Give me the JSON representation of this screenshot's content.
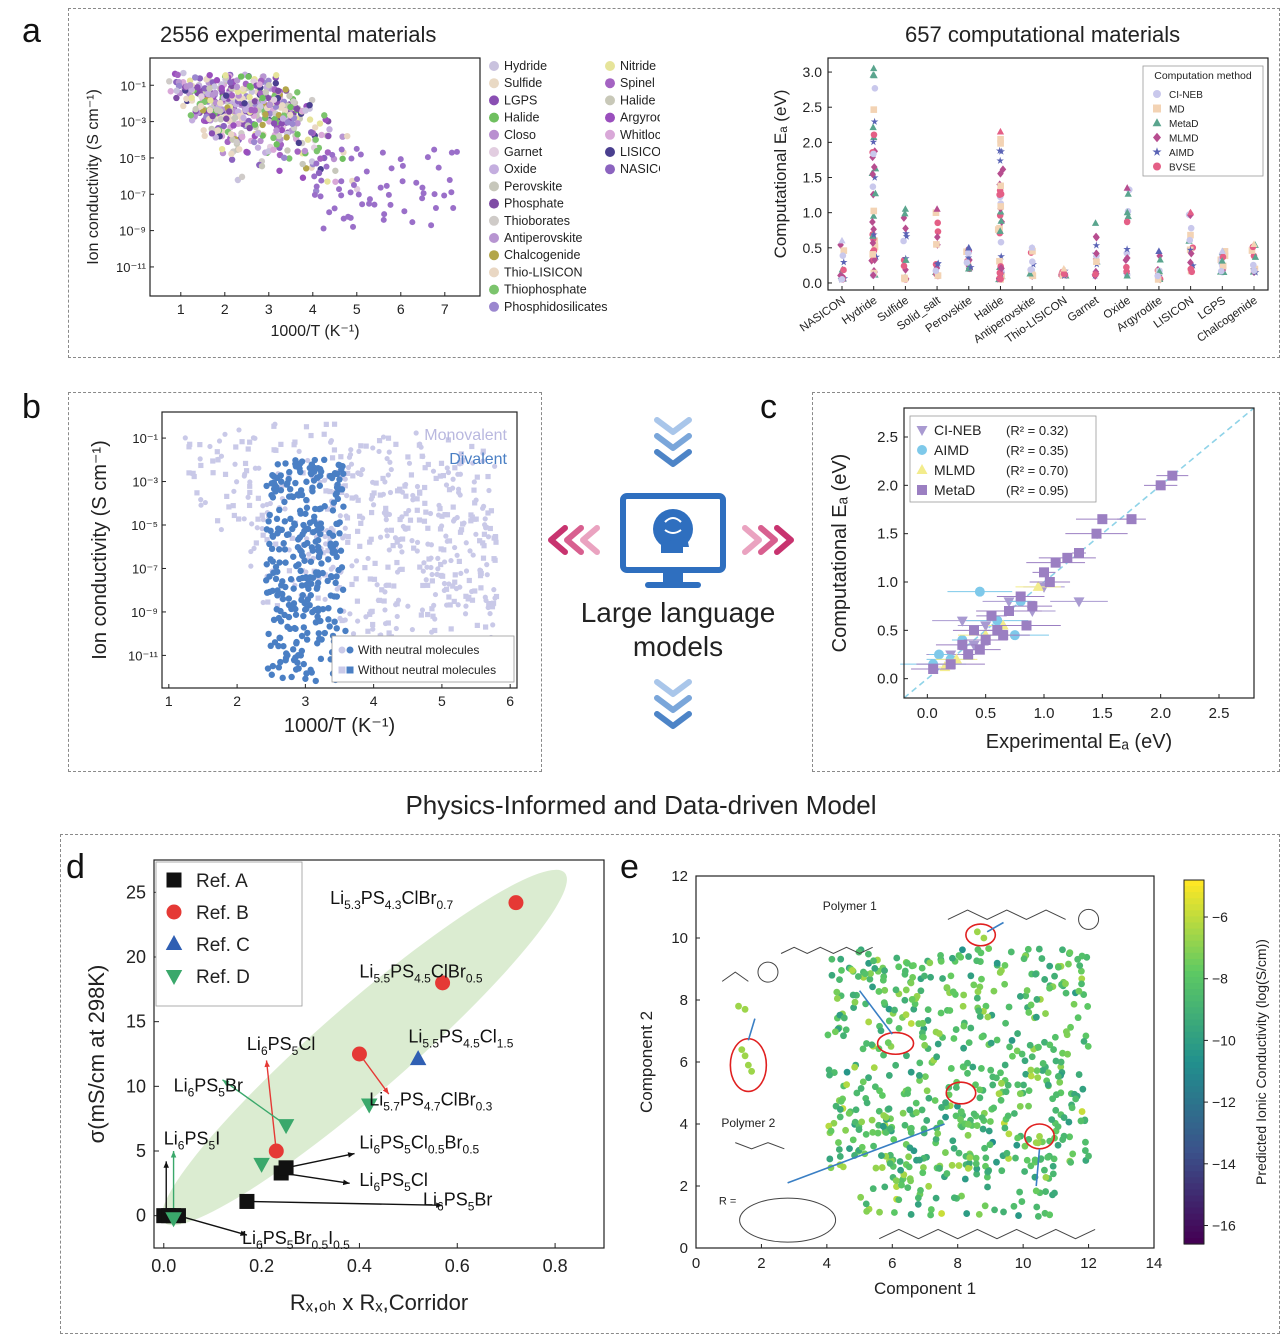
{
  "panel_labels": {
    "a": "a",
    "b": "b",
    "c": "c",
    "d": "d",
    "e": "e"
  },
  "center": {
    "line1": "Large language",
    "line2": "models",
    "icon": "monitor-brain-icon"
  },
  "section_title": "Physics-Informed and Data-driven Model",
  "chart_data": [
    {
      "id": "a_left",
      "type": "scatter",
      "title": "2556  experimental  materials",
      "xlabel": "1000/T (K⁻¹)",
      "ylabel": "Ion conductivity (S cm⁻¹)",
      "xlim": [
        0.3,
        7.8
      ],
      "ylim": [
        -12.6,
        0.5
      ],
      "log_y": true,
      "x_ticks": [
        "1",
        "2",
        "3",
        "4",
        "5",
        "6",
        "7"
      ],
      "y_ticks": [
        "10⁻¹",
        "10⁻³",
        "10⁻⁵",
        "10⁻⁷",
        "10⁻⁹",
        "10⁻¹¹"
      ],
      "legend_col1": [
        {
          "name": "Hydride",
          "color": "#c9c2de"
        },
        {
          "name": "Sulfide",
          "color": "#e9d9c4"
        },
        {
          "name": "LGPS",
          "color": "#8a4fb3"
        },
        {
          "name": "Halide",
          "color": "#6fbf5f"
        },
        {
          "name": "Closo",
          "color": "#b98fd0"
        },
        {
          "name": "Garnet",
          "color": "#e2cde0"
        },
        {
          "name": "Oxide",
          "color": "#c4aedf"
        },
        {
          "name": "Perovskite",
          "color": "#c7c7bb"
        },
        {
          "name": "Phosphate",
          "color": "#7f4ca5"
        },
        {
          "name": "Thioborates",
          "color": "#cfcbc8"
        },
        {
          "name": "Antiperovskite",
          "color": "#b795d1"
        },
        {
          "name": "Chalcogenide",
          "color": "#b3a64a"
        },
        {
          "name": "Thio-LISICON",
          "color": "#e9d7c3"
        },
        {
          "name": "Thiophosphate",
          "color": "#7cc46d"
        },
        {
          "name": "Phosphidosilicates",
          "color": "#9b87cf"
        }
      ],
      "legend_col2": [
        {
          "name": "Nitride",
          "color": "#e6e49a"
        },
        {
          "name": "Spinel",
          "color": "#a463c2"
        },
        {
          "name": "Halide",
          "color": "#c8c8b8"
        },
        {
          "name": "Argyrodite",
          "color": "#9a4fbd"
        },
        {
          "name": "Whitlockite",
          "color": "#d9a8d8"
        },
        {
          "name": "LISICON",
          "color": "#4a3f8f"
        },
        {
          "name": "NASICON",
          "color": "#8b63bf"
        }
      ]
    },
    {
      "id": "a_right",
      "type": "scatter",
      "title": "657 computational materials",
      "ylabel": "Computational Eₐ (eV)",
      "ylim": [
        -0.1,
        3.2
      ],
      "y_ticks": [
        "0.0",
        "0.5",
        "1.0",
        "1.5",
        "2.0",
        "2.5",
        "3.0"
      ],
      "categories": [
        "NASICON",
        "Hydride",
        "Sulfide",
        "Solid_salt",
        "Perovskite",
        "Halide",
        "Antiperovskite",
        "Thio-LISICON",
        "Garnet",
        "Oxide",
        "Argyrodite",
        "LISICON",
        "LGPS",
        "Chalcogenide"
      ],
      "legend_title": "Computation method",
      "legend": [
        {
          "name": "CI-NEB",
          "color": "#c9c8ec",
          "marker": "circle"
        },
        {
          "name": "MD",
          "color": "#f3d3b4",
          "marker": "square"
        },
        {
          "name": "MetaD",
          "color": "#5aa58e",
          "marker": "triangle"
        },
        {
          "name": "MLMD",
          "color": "#b74d8f",
          "marker": "diamond"
        },
        {
          "name": "AIMD",
          "color": "#5a63b5",
          "marker": "star"
        },
        {
          "name": "BVSE",
          "color": "#e45f86",
          "marker": "circle"
        }
      ],
      "ranges": [
        [
          0.05,
          0.6
        ],
        [
          0.1,
          3.05
        ],
        [
          0.05,
          1.05
        ],
        [
          0.1,
          1.05
        ],
        [
          0.2,
          0.5
        ],
        [
          0.05,
          2.15
        ],
        [
          0.1,
          0.5
        ],
        [
          0.1,
          0.2
        ],
        [
          0.1,
          0.85
        ],
        [
          0.1,
          1.35
        ],
        [
          0.05,
          0.45
        ],
        [
          0.15,
          1.0
        ],
        [
          0.15,
          0.45
        ],
        [
          0.15,
          0.55
        ]
      ]
    },
    {
      "id": "b",
      "type": "scatter",
      "xlabel": "1000/T (K⁻¹)",
      "ylabel": "Ion conductivity (S cm⁻¹)",
      "xlim": [
        0.9,
        6.1
      ],
      "ylim": [
        -12.5,
        0.2
      ],
      "log_y": true,
      "x_ticks": [
        "1",
        "2",
        "3",
        "4",
        "5",
        "6"
      ],
      "y_ticks": [
        "10⁻¹",
        "10⁻³",
        "10⁻⁵",
        "10⁻⁷",
        "10⁻⁹",
        "10⁻¹¹"
      ],
      "series": [
        {
          "name": "Monovalent",
          "color": "#c9c9e8"
        },
        {
          "name": "Divalent",
          "color": "#4a7fc4"
        }
      ],
      "legend": [
        "With neutral molecules",
        "Without neutral molecules"
      ]
    },
    {
      "id": "c",
      "type": "scatter",
      "xlabel": "Experimental Eₐ (eV)",
      "ylabel": "Computational Eₐ (eV)",
      "xlim": [
        -0.2,
        2.8
      ],
      "ylim": [
        -0.2,
        2.8
      ],
      "x_ticks": [
        "0.0",
        "0.5",
        "1.0",
        "1.5",
        "2.0",
        "2.5"
      ],
      "y_ticks": [
        "0.0",
        "0.5",
        "1.0",
        "1.5",
        "2.0",
        "2.5"
      ],
      "series": [
        {
          "name": "CI-NEB",
          "r2": "(R² = 0.32)",
          "color": "#a99ad1",
          "marker": "triangle-down",
          "points": [
            [
              0.3,
              0.6
            ],
            [
              0.5,
              0.55
            ],
            [
              0.7,
              0.8
            ],
            [
              0.9,
              0.7
            ],
            [
              0.4,
              0.35
            ],
            [
              0.2,
              0.25
            ],
            [
              1.0,
              0.95
            ],
            [
              1.3,
              0.8
            ]
          ]
        },
        {
          "name": "AIMD",
          "r2": "(R² = 0.35)",
          "color": "#7ec9ea",
          "marker": "circle",
          "points": [
            [
              0.05,
              0.15
            ],
            [
              0.1,
              0.25
            ],
            [
              0.2,
              0.2
            ],
            [
              0.45,
              0.9
            ],
            [
              0.6,
              0.6
            ],
            [
              0.3,
              0.4
            ],
            [
              0.75,
              0.45
            ],
            [
              0.8,
              0.8
            ]
          ]
        },
        {
          "name": "MLMD",
          "r2": "(R² = 0.70)",
          "color": "#f3ec8c",
          "marker": "triangle",
          "points": [
            [
              0.25,
              0.2
            ],
            [
              0.5,
              0.45
            ],
            [
              0.95,
              0.95
            ],
            [
              0.15,
              0.12
            ],
            [
              0.65,
              0.55
            ]
          ]
        },
        {
          "name": "MetaD",
          "r2": "(R² = 0.95)",
          "color": "#9b7fc2",
          "marker": "square",
          "points": [
            [
              0.05,
              0.1
            ],
            [
              0.2,
              0.15
            ],
            [
              0.3,
              0.35
            ],
            [
              0.4,
              0.5
            ],
            [
              0.5,
              0.4
            ],
            [
              0.55,
              0.65
            ],
            [
              0.6,
              0.5
            ],
            [
              0.7,
              0.7
            ],
            [
              0.8,
              0.85
            ],
            [
              0.9,
              0.75
            ],
            [
              1.0,
              1.1
            ],
            [
              1.05,
              1.0
            ],
            [
              1.1,
              1.2
            ],
            [
              1.2,
              1.25
            ],
            [
              1.3,
              1.3
            ],
            [
              1.45,
              1.5
            ],
            [
              1.5,
              1.65
            ],
            [
              1.75,
              1.65
            ],
            [
              2.0,
              2.0
            ],
            [
              2.1,
              2.1
            ],
            [
              0.35,
              0.25
            ],
            [
              0.45,
              0.3
            ],
            [
              0.65,
              0.45
            ],
            [
              0.85,
              0.55
            ]
          ]
        }
      ]
    },
    {
      "id": "d",
      "type": "scatter",
      "xlabel": "Rₓ,ₒₕ x Rₓ,Corridor",
      "ylabel": "σ(mS/cm at 298K)",
      "xlim": [
        -0.02,
        0.9
      ],
      "ylim": [
        -2.5,
        27.5
      ],
      "x_ticks": [
        "0.0",
        "0.2",
        "0.4",
        "0.6",
        "0.8"
      ],
      "y_ticks": [
        "0",
        "5",
        "10",
        "15",
        "20",
        "25"
      ],
      "series": [
        {
          "name": "Ref. A",
          "color": "#111111",
          "marker": "square",
          "points": [
            [
              0.0,
              0
            ],
            [
              0.01,
              0
            ],
            [
              0.02,
              0
            ],
            [
              0.03,
              0
            ],
            [
              0.17,
              1.1
            ],
            [
              0.24,
              3.3
            ],
            [
              0.25,
              3.7
            ]
          ]
        },
        {
          "name": "Ref. B",
          "color": "#e53935",
          "marker": "circle",
          "points": [
            [
              0.72,
              24.2
            ],
            [
              0.57,
              18
            ],
            [
              0.4,
              12.5
            ],
            [
              0.23,
              5
            ]
          ]
        },
        {
          "name": "Ref. C",
          "color": "#2f5fb3",
          "marker": "triangle",
          "points": [
            [
              0.52,
              12.1
            ]
          ]
        },
        {
          "name": "Ref. D",
          "color": "#3aa86b",
          "marker": "triangle-down",
          "points": [
            [
              0.25,
              7
            ],
            [
              0.42,
              8.6
            ],
            [
              0.2,
              4
            ],
            [
              0.02,
              -0.2
            ]
          ]
        }
      ],
      "annotations": [
        {
          "main": "Li",
          "parts": [
            [
              "Li",
              ""
            ],
            [
              "5.3",
              "sub"
            ],
            [
              "PS",
              ""
            ],
            [
              "4.3",
              "sub"
            ],
            [
              "ClBr",
              ""
            ],
            [
              "0.7",
              "sub"
            ]
          ]
        },
        {
          "parts": [
            [
              "Li",
              ""
            ],
            [
              "5.5",
              "sub"
            ],
            [
              "PS",
              ""
            ],
            [
              "4.5",
              "sub"
            ],
            [
              "ClBr",
              ""
            ],
            [
              "0.5",
              "sub"
            ]
          ]
        },
        {
          "parts": [
            [
              "Li",
              ""
            ],
            [
              "5.5",
              "sub"
            ],
            [
              "PS",
              ""
            ],
            [
              "4.5",
              "sub"
            ],
            [
              "Cl",
              ""
            ],
            [
              "1.5",
              "sub"
            ]
          ]
        },
        {
          "parts": [
            [
              "Li",
              ""
            ],
            [
              "6",
              "sub"
            ],
            [
              "PS",
              ""
            ],
            [
              "5",
              "sub"
            ],
            [
              "Cl",
              ""
            ]
          ]
        },
        {
          "parts": [
            [
              "Li",
              ""
            ],
            [
              "5.7",
              "sub"
            ],
            [
              "PS",
              ""
            ],
            [
              "4.7",
              "sub"
            ],
            [
              "ClBr",
              ""
            ],
            [
              "0.3",
              "sub"
            ]
          ]
        },
        {
          "parts": [
            [
              "Li",
              ""
            ],
            [
              "6",
              "sub"
            ],
            [
              "PS",
              ""
            ],
            [
              "5",
              "sub"
            ],
            [
              "Br",
              ""
            ]
          ]
        },
        {
          "parts": [
            [
              "Li",
              ""
            ],
            [
              "6",
              "sub"
            ],
            [
              "PS",
              ""
            ],
            [
              "5",
              "sub"
            ],
            [
              "I",
              ""
            ]
          ]
        },
        {
          "parts": [
            [
              "Li",
              ""
            ],
            [
              "6",
              "sub"
            ],
            [
              "PS",
              ""
            ],
            [
              "5",
              "sub"
            ],
            [
              "Cl",
              ""
            ],
            [
              "0.5",
              "sub"
            ],
            [
              "Br",
              ""
            ],
            [
              "0.5",
              "sub"
            ]
          ]
        },
        {
          "parts": [
            [
              "Li",
              ""
            ],
            [
              "6",
              "sub"
            ],
            [
              "PS",
              ""
            ],
            [
              "5",
              "sub"
            ],
            [
              "Cl",
              ""
            ]
          ]
        },
        {
          "parts": [
            [
              "Li",
              ""
            ],
            [
              "6",
              "sub"
            ],
            [
              "PS",
              ""
            ],
            [
              "5",
              "sub"
            ],
            [
              "Br",
              ""
            ]
          ]
        },
        {
          "parts": [
            [
              "Li",
              ""
            ],
            [
              "6",
              "sub"
            ],
            [
              "PS",
              ""
            ],
            [
              "5",
              "sub"
            ],
            [
              "Br",
              ""
            ],
            [
              "0.5",
              "sub"
            ],
            [
              "I",
              ""
            ],
            [
              "0.5",
              "sub"
            ]
          ]
        }
      ]
    },
    {
      "id": "e",
      "type": "scatter",
      "xlabel": "Component 1",
      "ylabel": "Component 2",
      "xlim": [
        0,
        14
      ],
      "ylim": [
        0,
        12
      ],
      "x_ticks": [
        "0",
        "2",
        "4",
        "6",
        "8",
        "10",
        "12",
        "14"
      ],
      "y_ticks": [
        "0",
        "2",
        "4",
        "6",
        "8",
        "10",
        "12"
      ],
      "colorbar_label": "Predicted Ionic Conductivity (log(S/cm))",
      "colorbar_ticks": [
        "−6",
        "−8",
        "−10",
        "−12",
        "−14",
        "−16"
      ],
      "polymer_labels": [
        "Polymer 1",
        "Polymer 2"
      ],
      "r_label": "R ="
    }
  ]
}
